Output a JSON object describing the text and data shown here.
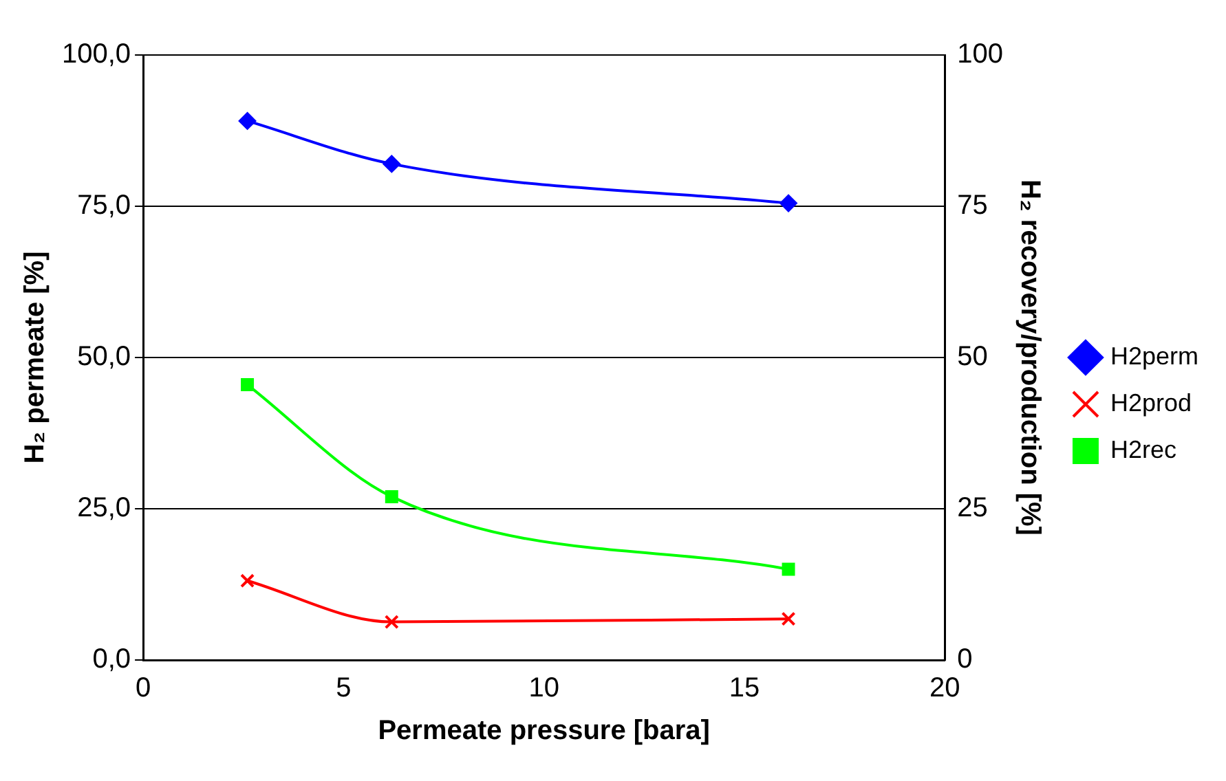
{
  "chart_data": {
    "type": "line",
    "xlabel": "Permeate pressure [bara]",
    "ylabel": "H₂ permeate [%]",
    "y2label": "H₂ recovery/production [%]",
    "series": [
      {
        "name": "H2perm",
        "color": "#0000ff",
        "marker": "diamond",
        "x": [
          2.6,
          6.2,
          16.1
        ],
        "values": [
          89.1,
          82.0,
          75.5
        ]
      },
      {
        "name": "H2prod",
        "color": "#ff0000",
        "marker": "cross",
        "x": [
          2.6,
          6.2,
          16.1
        ],
        "values": [
          13.1,
          6.3,
          6.8
        ]
      },
      {
        "name": "H2rec",
        "color": "#00ff00",
        "marker": "square",
        "x": [
          2.6,
          6.2,
          16.1
        ],
        "values": [
          45.5,
          27.0,
          15.0
        ]
      }
    ],
    "xlim": [
      0,
      20
    ],
    "xticks": [
      0,
      5,
      10,
      15,
      20
    ],
    "ylim": [
      0,
      100
    ],
    "yticks": [
      {
        "value": 0,
        "label": "0,0"
      },
      {
        "value": 25,
        "label": "25,0"
      },
      {
        "value": 50,
        "label": "50,0"
      },
      {
        "value": 75,
        "label": "75,0"
      },
      {
        "value": 100,
        "label": "100,0"
      }
    ],
    "y2lim": [
      0,
      100
    ],
    "y2ticks": [
      0,
      25,
      50,
      75,
      100
    ],
    "grid": "y",
    "legend": "right"
  }
}
